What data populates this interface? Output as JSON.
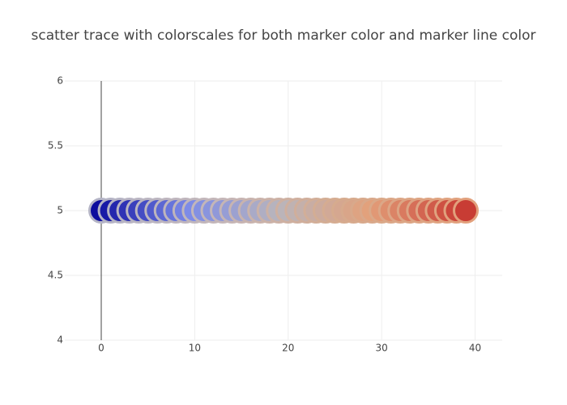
{
  "chart_data": {
    "type": "scatter",
    "title": "scatter trace with colorscales for both marker color and marker line color",
    "x": [
      0,
      1,
      2,
      3,
      4,
      5,
      6,
      7,
      8,
      9,
      10,
      11,
      12,
      13,
      14,
      15,
      16,
      17,
      18,
      19,
      20,
      21,
      22,
      23,
      24,
      25,
      26,
      27,
      28,
      29,
      30,
      31,
      32,
      33,
      34,
      35,
      36,
      37,
      38,
      39
    ],
    "y": [
      5,
      5,
      5,
      5,
      5,
      5,
      5,
      5,
      5,
      5,
      5,
      5,
      5,
      5,
      5,
      5,
      5,
      5,
      5,
      5,
      5,
      5,
      5,
      5,
      5,
      5,
      5,
      5,
      5,
      5,
      5,
      5,
      5,
      5,
      5,
      5,
      5,
      5,
      5,
      5
    ],
    "marker_colorscale": [
      "#0d0d9e",
      "#7b8ae8",
      "#b9b5bc",
      "#e3a07a",
      "#c83c34"
    ],
    "marker_line_colorscale": [
      "#b4b4c6",
      "#c4b6b8",
      "#d6ab8e",
      "#e2a07c"
    ],
    "xlim": [
      -3.9,
      42.9
    ],
    "ylim": [
      4,
      6
    ],
    "xticks": [
      0,
      10,
      20,
      30,
      40
    ],
    "yticks": [
      4,
      4.5,
      5,
      5.5,
      6
    ],
    "grid": true
  }
}
